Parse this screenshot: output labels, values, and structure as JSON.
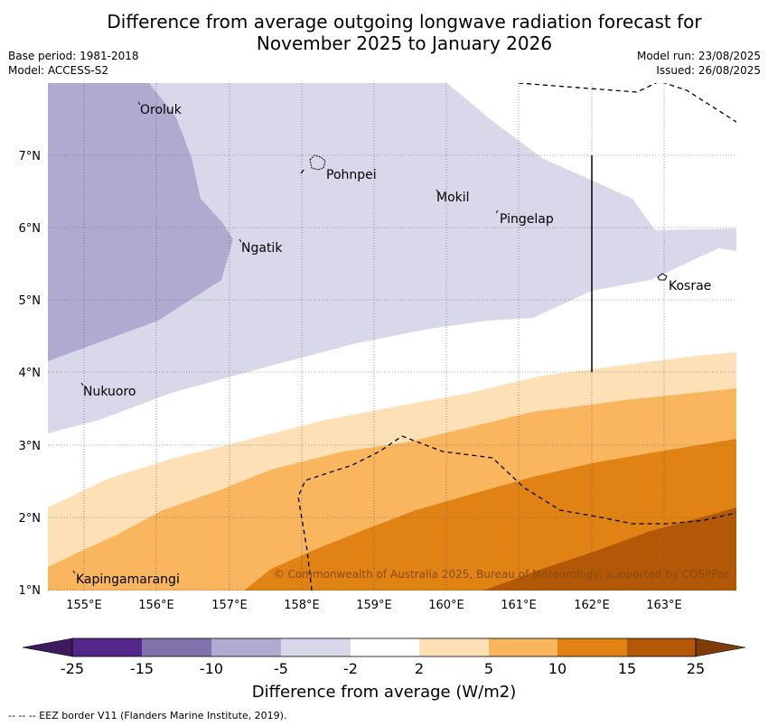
{
  "title_line1": "Difference from average outgoing longwave radiation forecast for",
  "title_line2": "November 2025 to January 2026",
  "base_period": "Base period: 1981-2018",
  "model": "Model: ACCESS-S2",
  "model_run": "Model run: 23/08/2025",
  "issued": "Issued: 26/08/2025",
  "x_ticks": [
    "155°E",
    "156°E",
    "157°E",
    "158°E",
    "159°E",
    "160°E",
    "161°E",
    "162°E",
    "163°E"
  ],
  "y_ticks": [
    "7°N",
    "6°N",
    "5°N",
    "4°N",
    "3°N",
    "2°N",
    "1°N"
  ],
  "places": {
    "oroluk": "Oroluk",
    "pohnpei": "Pohnpei",
    "mokil": "Mokil",
    "pingelap": "Pingelap",
    "ngatik": "Ngatik",
    "kosrae": "Kosrae",
    "nukuoro": "Nukuoro",
    "kapingamarangi": "Kapingamarangi"
  },
  "copyright": "© Commonwealth of Australia 2025, Bureau of Meteorology, supported by COSPPac",
  "colorbar": {
    "ticks": [
      "-25",
      "-15",
      "-10",
      "-5",
      "-2",
      "2",
      "5",
      "10",
      "15",
      "25"
    ],
    "colors": [
      "#3d1a5e",
      "#54288b",
      "#8072aa",
      "#b0aad1",
      "#d8d8ea",
      "#ffffff",
      "#fde0b6",
      "#fab55f",
      "#e08214",
      "#b35806",
      "#7f3b08"
    ],
    "label": "Difference from average (W/m2)"
  },
  "footer": "--  --  -- EEZ border V11 (Flanders Marine Institute, 2019)."
}
